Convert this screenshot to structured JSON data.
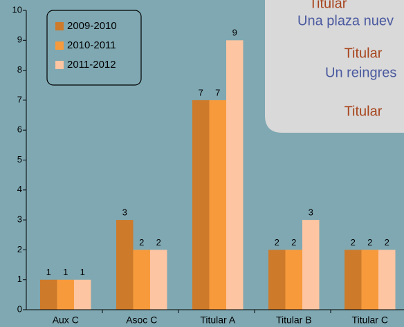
{
  "chart_data": {
    "type": "bar",
    "categories": [
      "Aux C",
      "Asoc C",
      "Titular A",
      "Titular B",
      "Titular C"
    ],
    "series": [
      {
        "name": "2009-2010",
        "color": "#cd7a2b",
        "values": [
          1,
          3,
          7,
          2,
          2
        ]
      },
      {
        "name": "2010-2011",
        "color": "#f79a3c",
        "values": [
          1,
          2,
          7,
          2,
          2
        ]
      },
      {
        "name": "2011-2012",
        "color": "#fdc5a2",
        "values": [
          1,
          2,
          9,
          3,
          2
        ]
      }
    ],
    "ylim": [
      0,
      10
    ],
    "yticks": [
      0,
      1,
      2,
      3,
      4,
      5,
      6,
      7,
      8,
      9,
      10
    ],
    "legend": "upper left"
  },
  "overlay": {
    "lines": [
      "Titular",
      "Una plaza nuev",
      "Titular",
      "Un reingres",
      "Titular"
    ]
  }
}
